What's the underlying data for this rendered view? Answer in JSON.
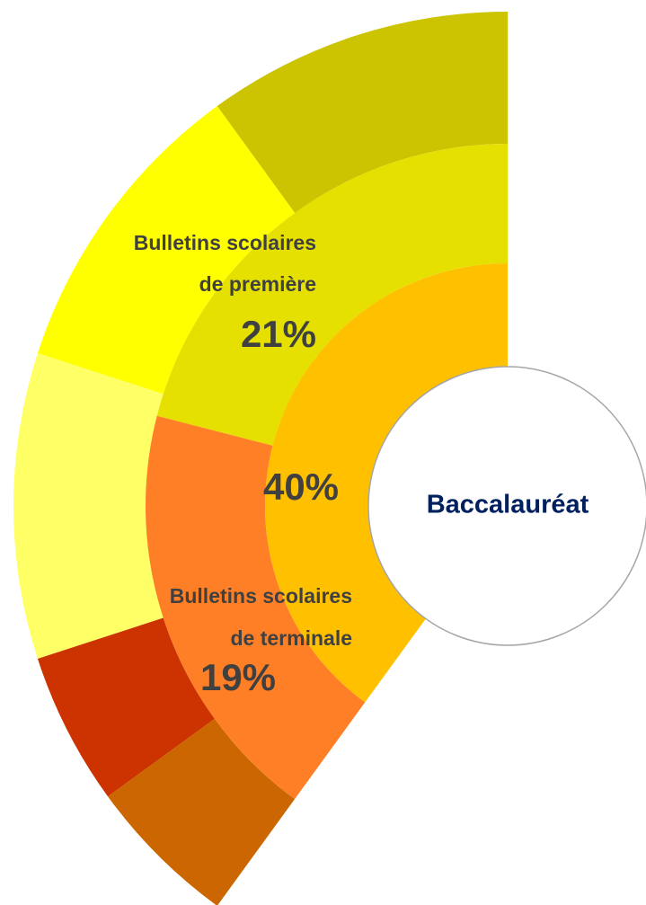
{
  "chart_data": {
    "type": "sunburst",
    "center_label": "Baccalauréat",
    "rings": [
      {
        "values": [
          40
        ],
        "value_labels": [
          "40%"
        ],
        "colors": [
          "#FFC000"
        ]
      },
      {
        "values": [
          21,
          19
        ],
        "value_labels": [
          "21%",
          "19%"
        ],
        "labels": [
          [
            "Bulletins scolaires",
            "de première"
          ],
          [
            "Bulletins scolaires",
            "de terminale"
          ]
        ],
        "colors": [
          "#E5E000",
          "#FF7F27"
        ]
      },
      {
        "values": [
          10,
          10,
          10,
          5,
          5
        ],
        "colors": [
          "#CCC400",
          "#FFFF00",
          "#FFFF66",
          "#CC3300",
          "#CC6600"
        ]
      }
    ]
  }
}
